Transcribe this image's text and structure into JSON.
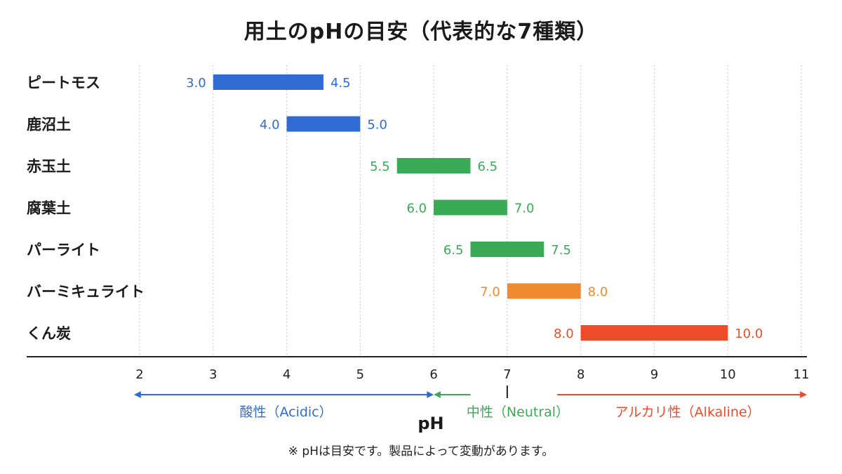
{
  "chart_data": {
    "type": "bar",
    "orientation": "horizontal-range",
    "title": "用土のpHの目安（代表的な7種類）",
    "xlabel": "pH",
    "xlim": [
      2,
      11
    ],
    "xticks": [
      2,
      3,
      4,
      5,
      6,
      7,
      8,
      9,
      10,
      11
    ],
    "grid": "vertical-dotted",
    "categories": [
      "ピートモス",
      "鹿沼土",
      "赤玉土",
      "腐葉土",
      "パーライト",
      "バーミキュライト",
      "くん炭"
    ],
    "bars": [
      {
        "category": "ピートモス",
        "low": 3.0,
        "high": 4.5,
        "low_label": "3.0",
        "high_label": "4.5",
        "color": "#2F6BD3"
      },
      {
        "category": "鹿沼土",
        "low": 4.0,
        "high": 5.0,
        "low_label": "4.0",
        "high_label": "5.0",
        "color": "#2F6BD3"
      },
      {
        "category": "赤玉土",
        "low": 5.5,
        "high": 6.5,
        "low_label": "5.5",
        "high_label": "6.5",
        "color": "#3BAA57"
      },
      {
        "category": "腐葉土",
        "low": 6.0,
        "high": 7.0,
        "low_label": "6.0",
        "high_label": "7.0",
        "color": "#3BAA57"
      },
      {
        "category": "パーライト",
        "low": 6.5,
        "high": 7.5,
        "low_label": "6.5",
        "high_label": "7.5",
        "color": "#3BAA57"
      },
      {
        "category": "バーミキュライト",
        "low": 7.0,
        "high": 8.0,
        "low_label": "7.0",
        "high_label": "8.0",
        "color": "#F08A2E"
      },
      {
        "category": "くん炭",
        "low": 8.0,
        "high": 10.0,
        "low_label": "8.0",
        "high_label": "10.0",
        "color": "#EE4B2B"
      }
    ],
    "regions": [
      {
        "label": "酸性（Acidic）",
        "from": 2,
        "to": 6,
        "color": "#2F6BD3"
      },
      {
        "label": "中性（Neutral）",
        "from": 6,
        "to": 8,
        "color": "#3BAA57"
      },
      {
        "label": "アルカリ性（Alkaline）",
        "from": 8,
        "to": 11,
        "color": "#EE4B2B"
      }
    ],
    "neutral_marker": 7
  },
  "footnote": "※ pHは目安です。製品によって変動があります。"
}
